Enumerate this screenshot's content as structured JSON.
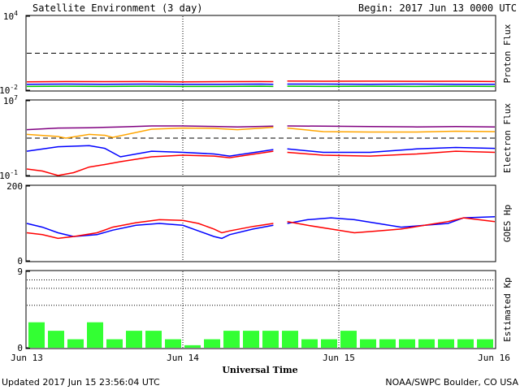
{
  "header": {
    "title": "Satellite Environment (3 day)",
    "begin_label": "Begin:  2017 Jun 13 0000 UTC"
  },
  "footer": {
    "updated": "Updated 2017 Jun 15 23:56:04 UTC",
    "credit": "NOAA/SWPC Boulder, CO USA"
  },
  "xaxis": {
    "label": "Universal Time",
    "ticks": [
      "Jun 13",
      "Jun 14",
      "Jun 15",
      "Jun 16"
    ],
    "range_days": [
      0,
      3
    ]
  },
  "chart_data": [
    {
      "type": "line",
      "panel": "proton",
      "ylabel": "Proton Flux",
      "scale": "log",
      "ylim": [
        0.01,
        10000
      ],
      "tick_labels": [
        {
          "base": "10",
          "exp": "4",
          "value": 10000
        },
        {
          "base": "10",
          "exp": "-2",
          "value": 0.01
        }
      ],
      "threshold": 10,
      "gap_days": [
        1.58,
        1.67
      ],
      "series": [
        {
          "color": "#ff0000",
          "x": [
            0,
            0.25,
            0.5,
            0.75,
            1.0,
            1.25,
            1.5,
            1.58,
            1.67,
            1.9,
            2.2,
            2.5,
            2.75,
            3.0
          ],
          "y": [
            0.048,
            0.05,
            0.049,
            0.05,
            0.048,
            0.049,
            0.05,
            0.049,
            0.055,
            0.053,
            0.054,
            0.052,
            0.053,
            0.05
          ]
        },
        {
          "color": "#0000ff",
          "x": [
            0,
            0.25,
            0.5,
            0.75,
            1.0,
            1.25,
            1.5,
            1.58,
            1.67,
            1.9,
            2.2,
            2.5,
            2.75,
            3.0
          ],
          "y": [
            0.03,
            0.031,
            0.03,
            0.031,
            0.03,
            0.03,
            0.031,
            0.03,
            0.031,
            0.031,
            0.03,
            0.031,
            0.03,
            0.03
          ]
        },
        {
          "color": "#00cc00",
          "x": [
            0,
            0.25,
            0.5,
            0.75,
            1.0,
            1.25,
            1.5,
            1.58,
            1.67,
            1.9,
            2.2,
            2.5,
            2.75,
            3.0
          ],
          "y": [
            0.02,
            0.021,
            0.02,
            0.021,
            0.02,
            0.02,
            0.021,
            0.02,
            0.021,
            0.02,
            0.021,
            0.02,
            0.021,
            0.02
          ]
        }
      ]
    },
    {
      "type": "line",
      "panel": "electron",
      "ylabel": "Electron Flux",
      "scale": "log",
      "ylim": [
        0.1,
        10000000
      ],
      "tick_labels": [
        {
          "base": "10",
          "exp": "7",
          "value": 10000000
        },
        {
          "base": "10",
          "exp": "-1",
          "value": 0.1
        }
      ],
      "threshold": 1000,
      "gap_days": [
        1.58,
        1.67
      ],
      "series": [
        {
          "color": "#800080",
          "x": [
            0,
            0.2,
            0.4,
            0.6,
            0.8,
            1.0,
            1.2,
            1.35,
            1.58,
            1.67,
            1.9,
            2.2,
            2.5,
            2.75,
            3.0
          ],
          "y": [
            8000,
            12000,
            13000,
            16000,
            20000,
            20000,
            18000,
            16000,
            19000,
            20000,
            19000,
            17000,
            16000,
            17000,
            16000
          ]
        },
        {
          "color": "#ffa500",
          "x": [
            0,
            0.2,
            0.25,
            0.4,
            0.5,
            0.55,
            0.8,
            1.0,
            1.2,
            1.35,
            1.58,
            1.67,
            1.9,
            2.2,
            2.5,
            2.75,
            3.0
          ],
          "y": [
            2500,
            1500,
            1000,
            2500,
            2000,
            1200,
            9000,
            12000,
            11000,
            8000,
            14000,
            12000,
            5000,
            4500,
            4500,
            5500,
            5000
          ]
        },
        {
          "color": "#0000ff",
          "x": [
            0,
            0.2,
            0.4,
            0.5,
            0.6,
            0.8,
            1.0,
            1.2,
            1.3,
            1.58,
            1.67,
            1.9,
            2.2,
            2.5,
            2.75,
            3.0
          ],
          "y": [
            40,
            120,
            160,
            80,
            10,
            40,
            30,
            20,
            12,
            60,
            70,
            30,
            30,
            70,
            100,
            80
          ]
        },
        {
          "color": "#ff0000",
          "x": [
            0,
            0.1,
            0.2,
            0.3,
            0.4,
            0.5,
            0.6,
            0.8,
            1.0,
            1.2,
            1.3,
            1.58,
            1.67,
            1.9,
            2.2,
            2.5,
            2.75,
            3.0
          ],
          "y": [
            0.5,
            0.3,
            0.1,
            0.2,
            0.8,
            1.5,
            3,
            10,
            15,
            12,
            8,
            40,
            30,
            15,
            12,
            20,
            40,
            30
          ]
        }
      ]
    },
    {
      "type": "line",
      "panel": "goes_hp",
      "ylabel": "GOES Hp",
      "scale": "linear",
      "ylim": [
        0,
        200
      ],
      "tick_labels": [
        {
          "base": "200",
          "exp": "",
          "value": 200
        },
        {
          "base": "0",
          "exp": "",
          "value": 0
        }
      ],
      "gap_days": [
        1.58,
        1.67
      ],
      "series": [
        {
          "color": "#0000ff",
          "x": [
            0,
            0.1,
            0.2,
            0.3,
            0.45,
            0.55,
            0.7,
            0.85,
            1.0,
            1.1,
            1.2,
            1.25,
            1.3,
            1.45,
            1.58,
            1.67,
            1.8,
            1.95,
            2.1,
            2.25,
            2.4,
            2.55,
            2.7,
            2.8,
            3.0
          ],
          "y": [
            100,
            90,
            75,
            65,
            70,
            82,
            95,
            100,
            95,
            80,
            65,
            60,
            70,
            85,
            95,
            100,
            110,
            115,
            110,
            100,
            90,
            95,
            100,
            115,
            118
          ]
        },
        {
          "color": "#ff0000",
          "x": [
            0,
            0.1,
            0.2,
            0.3,
            0.45,
            0.55,
            0.7,
            0.85,
            1.0,
            1.1,
            1.2,
            1.25,
            1.3,
            1.45,
            1.58,
            1.67,
            1.8,
            1.95,
            2.1,
            2.25,
            2.4,
            2.55,
            2.7,
            2.8,
            3.0
          ],
          "y": [
            75,
            70,
            60,
            65,
            75,
            90,
            102,
            110,
            108,
            100,
            85,
            75,
            80,
            92,
            100,
            105,
            95,
            85,
            75,
            80,
            85,
            95,
            105,
            115,
            105
          ]
        }
      ]
    },
    {
      "type": "bar",
      "panel": "kp",
      "ylabel": "Estimated Kp",
      "scale": "linear",
      "ylim": [
        0,
        9
      ],
      "tick_labels": [
        {
          "base": "9",
          "exp": "",
          "value": 9
        },
        {
          "base": "0",
          "exp": "",
          "value": 0
        }
      ],
      "bar_color": "#33ff33",
      "bar_width_days": 0.125,
      "values": [
        3,
        2,
        1,
        3,
        1,
        2,
        2,
        1,
        0.3,
        1,
        2,
        2,
        2,
        2,
        1,
        1,
        2,
        1,
        1,
        1,
        1,
        1,
        1,
        1
      ]
    }
  ]
}
